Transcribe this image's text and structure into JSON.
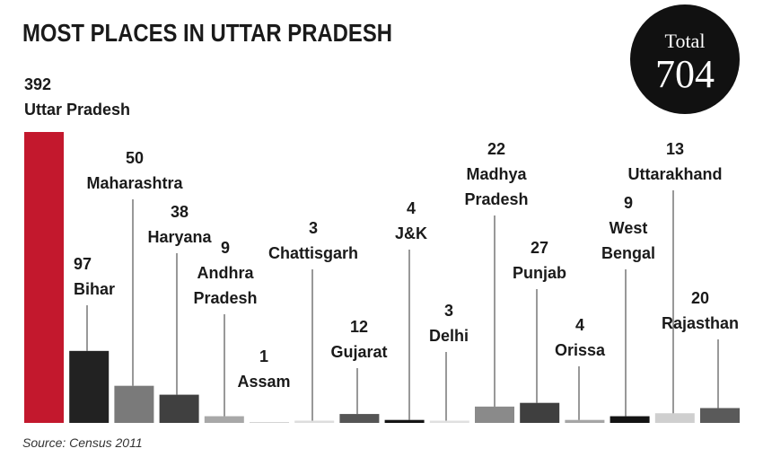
{
  "chart_data": {
    "type": "bar",
    "title": "MOST PLACES IN UTTAR PRADESH",
    "categories": [
      "Uttar Pradesh",
      "Bihar",
      "Maharashtra",
      "Haryana",
      "Andhra Pradesh",
      "Assam",
      "Chattisgarh",
      "Gujarat",
      "J&K",
      "Delhi",
      "Madhya Pradesh",
      "Punjab",
      "Orissa",
      "West Bengal",
      "Uttarakhand",
      "Rajasthan"
    ],
    "values": [
      392,
      97,
      50,
      38,
      9,
      1,
      3,
      12,
      4,
      3,
      22,
      27,
      4,
      9,
      13,
      20
    ],
    "colors": [
      "#c3182d",
      "#222222",
      "#7a7a7a",
      "#404040",
      "#a8a8a8",
      "#cccccc",
      "#dddddd",
      "#555555",
      "#151515",
      "#e0e0e0",
      "#8a8a8a",
      "#3f3f3f",
      "#a5a5a5",
      "#141414",
      "#cfcfcf",
      "#5a5a5a"
    ],
    "total": {
      "label": "Total",
      "value": 704
    },
    "source": "Source: Census 2011"
  }
}
